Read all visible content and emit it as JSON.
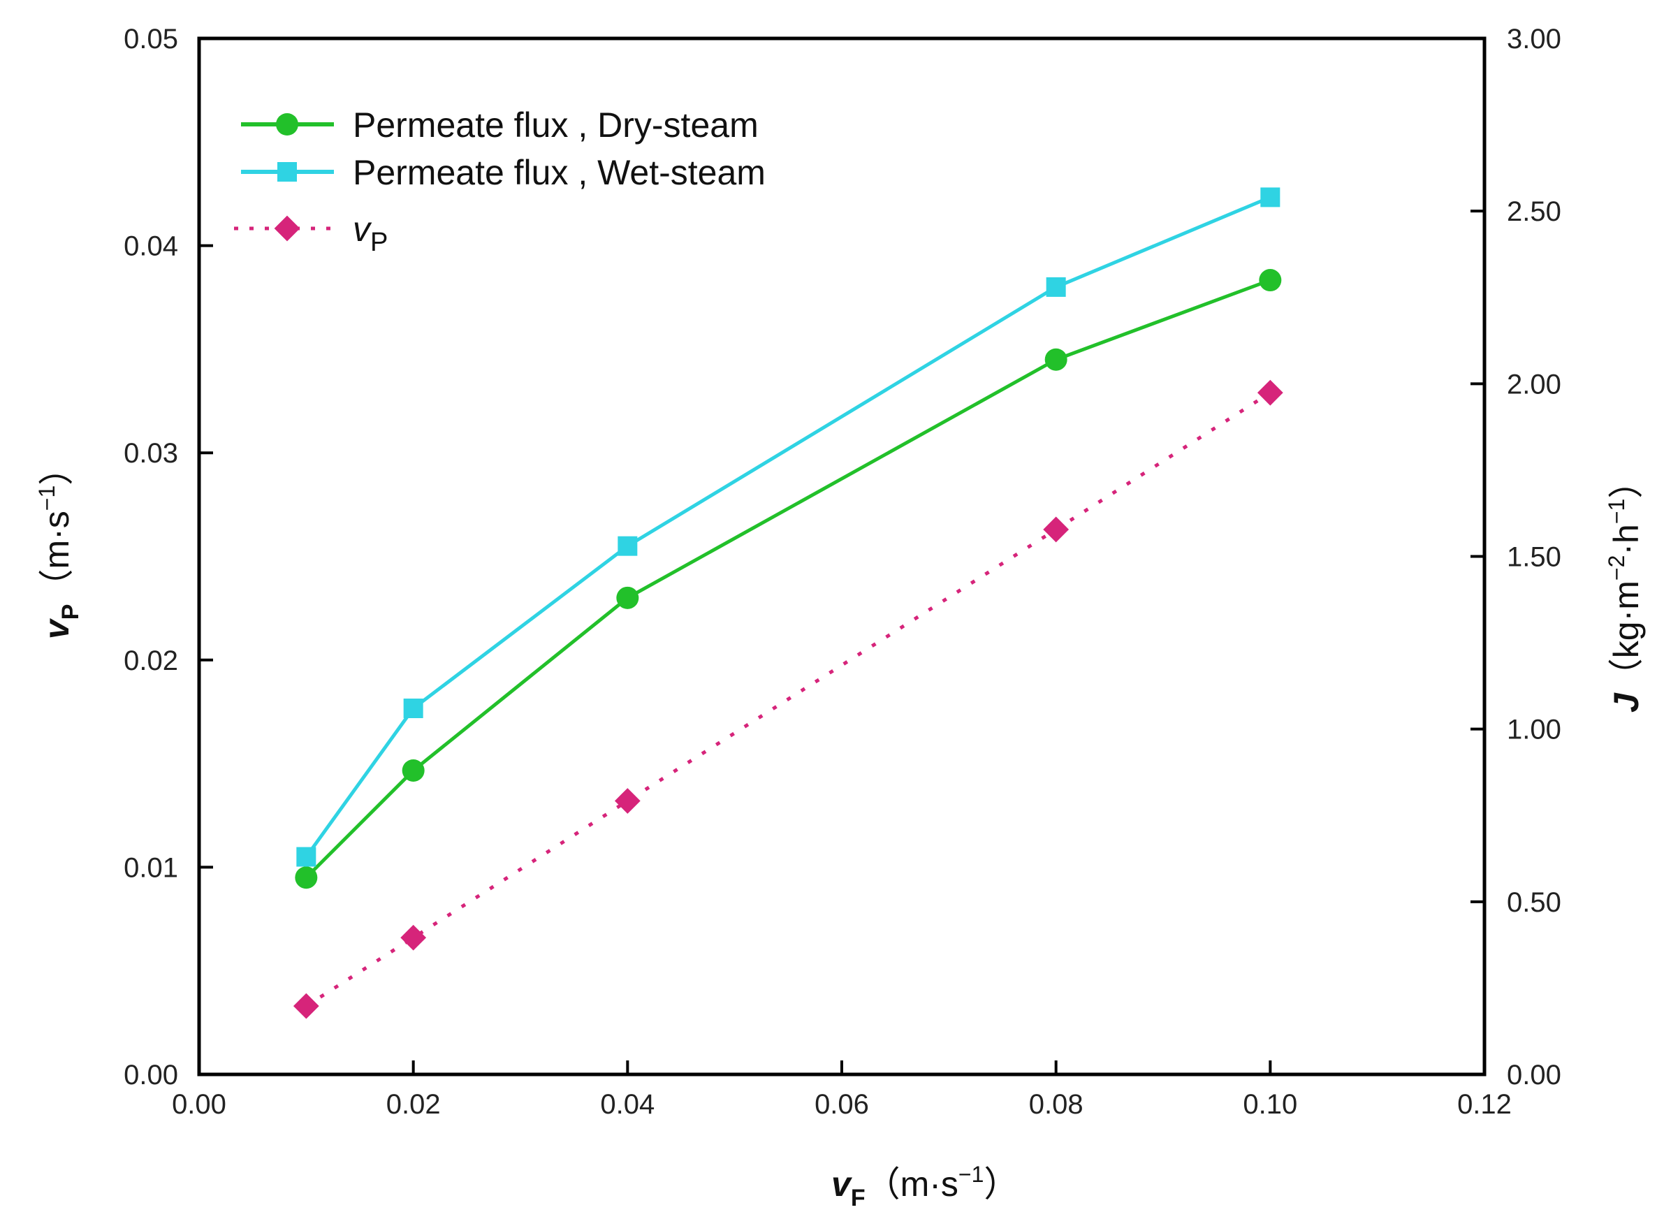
{
  "chart_data": {
    "type": "line",
    "x_axis": {
      "ticks": [
        "0.00",
        "0.02",
        "0.04",
        "0.06",
        "0.08",
        "0.10",
        "0.12"
      ],
      "range": [
        0,
        0.12
      ],
      "label_symbol": "v",
      "label_subscript": "F",
      "label_unit_open": "（m·s",
      "label_unit_exp": "−1",
      "label_unit_close": "）"
    },
    "y_left": {
      "ticks": [
        "0.00",
        "0.01",
        "0.02",
        "0.03",
        "0.04",
        "0.05"
      ],
      "range": [
        0,
        0.05
      ],
      "label_symbol": "v",
      "label_subscript": "P",
      "label_unit_open": "（m·s",
      "label_unit_exp": "−1",
      "label_unit_close": "）"
    },
    "y_right": {
      "ticks": [
        "0.00",
        "0.50",
        "1.00",
        "1.50",
        "2.00",
        "2.50",
        "3.00"
      ],
      "range": [
        0,
        3.0
      ],
      "label_symbol": "J",
      "label_unit_open": "（kg·m",
      "label_unit_exp1": "−2",
      "label_unit_mid": "·h",
      "label_unit_exp2": "−1",
      "label_unit_close": "）"
    },
    "legend_position": "top-left",
    "series": [
      {
        "name": "Permeate flux , Dry-steam",
        "axis": "right",
        "color": "#22c02a",
        "marker": "circle",
        "line": "solid",
        "x": [
          0.01,
          0.02,
          0.04,
          0.08,
          0.1
        ],
        "values": [
          0.57,
          0.88,
          1.38,
          2.07,
          2.3
        ]
      },
      {
        "name": "Permeate flux , Wet-steam",
        "axis": "right",
        "color": "#2fd3e3",
        "marker": "square",
        "line": "solid",
        "x": [
          0.01,
          0.02,
          0.04,
          0.08,
          0.1
        ],
        "values": [
          0.63,
          1.06,
          1.53,
          2.28,
          2.54
        ]
      },
      {
        "name": "v",
        "name_subscript": "P",
        "axis": "left",
        "color": "#d6247a",
        "marker": "diamond",
        "line": "dotted",
        "x": [
          0.01,
          0.02,
          0.04,
          0.08,
          0.1
        ],
        "values": [
          0.0033,
          0.0066,
          0.0132,
          0.0263,
          0.0329
        ]
      }
    ]
  }
}
